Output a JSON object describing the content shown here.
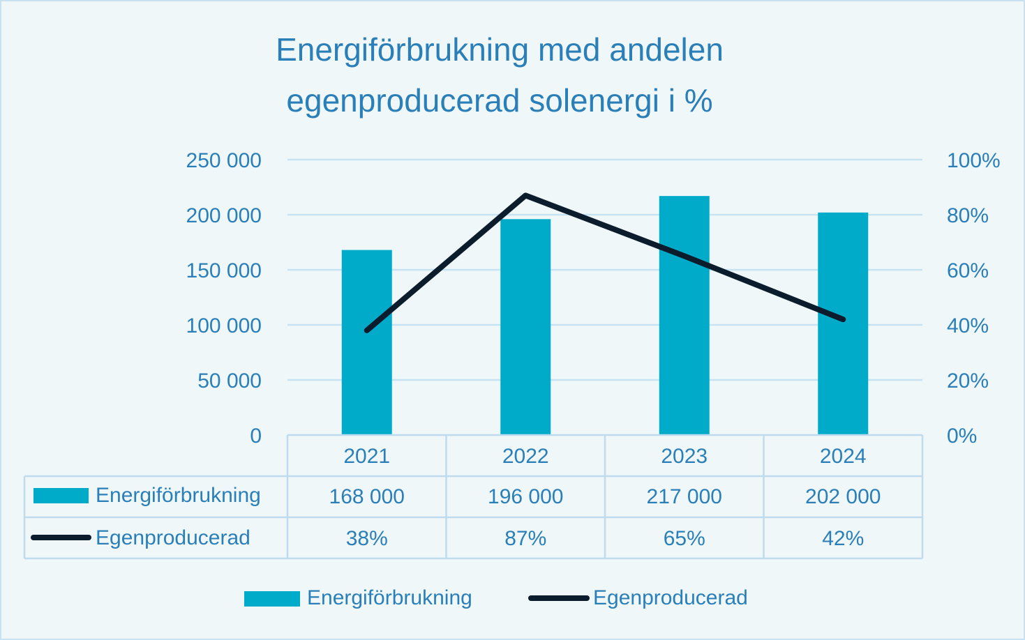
{
  "chart_data": {
    "type": "bar",
    "title_lines": [
      "Energiförbrukning med andelen",
      "egenproducerad solenergi i %"
    ],
    "categories": [
      "2021",
      "2022",
      "2023",
      "2024"
    ],
    "series": [
      {
        "name": "Energiförbrukning",
        "kind": "bar",
        "axis": "left",
        "values": [
          168000,
          196000,
          217000,
          202000
        ],
        "labels": [
          "168 000",
          "196 000",
          "217 000",
          "202 000"
        ]
      },
      {
        "name": "Egenproducerad",
        "kind": "line",
        "axis": "right",
        "values": [
          0.38,
          0.87,
          0.65,
          0.42
        ],
        "labels": [
          "38%",
          "87%",
          "65%",
          "42%"
        ]
      }
    ],
    "y_left": {
      "min": 0,
      "max": 250000,
      "ticks": [
        "0",
        "50 000",
        "100 000",
        "150 000",
        "200 000",
        "250 000"
      ]
    },
    "y_right": {
      "min": 0,
      "max": 1,
      "ticks": [
        "0%",
        "20%",
        "40%",
        "60%",
        "80%",
        "100%"
      ]
    },
    "grid": true,
    "data_table": true,
    "legend_position": "bottom",
    "colors": {
      "bar": "#00abc9",
      "line": "#0b1c2c",
      "text": "#2a7fb8",
      "grid": "#c5e3f2",
      "table_border": "#bfdcef"
    }
  }
}
